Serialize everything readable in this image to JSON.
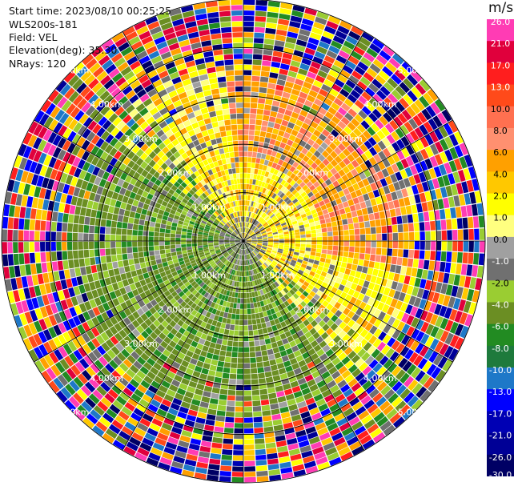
{
  "info": {
    "start_time": "Start time: 2023/08/10 00:25:25",
    "instrument": "WLS200s-181",
    "field": "Field: VEL",
    "elevation": "Elevation(deg): 35.30",
    "nrays": "NRays: 120"
  },
  "colorbar": {
    "unit": "m/s",
    "ticks": [
      "26.0",
      "21.0",
      "17.0",
      "13.0",
      "10.0",
      "8.0",
      "6.0",
      "4.0",
      "2.0",
      "1.0",
      "0.0",
      "-1.0",
      "-2.0",
      "-4.0",
      "-6.0",
      "-8.0",
      "-10.0",
      "-13.0",
      "-17.0",
      "-21.0",
      "-26.0",
      "-30.0"
    ],
    "colors": [
      "#ff3cb4",
      "#e0003c",
      "#ff1e1e",
      "#ff4a1a",
      "#ff7050",
      "#ff9070",
      "#ffa000",
      "#ffc800",
      "#ffff00",
      "#ffff80",
      "#a0a0a0",
      "#707070",
      "#9acd32",
      "#6b8e23",
      "#228b22",
      "#1e7a3c",
      "#1e78c8",
      "#0000ff",
      "#0000b4",
      "#000096",
      "#000064"
    ]
  },
  "chart_data": {
    "type": "ppi-polar",
    "field": "VEL",
    "nrays": 120,
    "range_labels": [
      "1.00km",
      "2.00km",
      "3.00km",
      "4.00km",
      "5.00km"
    ],
    "max_range_km": 5.0,
    "pattern": "inner region: yellow/orange to the north-east (positive velocity), green/olive to the south-west (negative velocity), grey patches near zero; outer rings noisy multicolour"
  }
}
